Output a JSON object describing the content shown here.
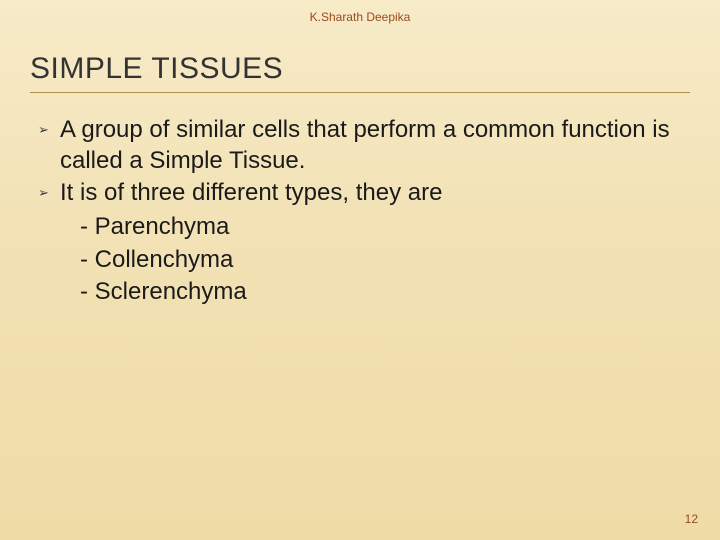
{
  "author": "K.Sharath Deepika",
  "title": "SIMPLE TISSUES",
  "bullets": [
    "A group of similar cells that perform a common function is called a Simple Tissue.",
    "It is of three different types, they are"
  ],
  "subitems": [
    "- Parenchyma",
    "- Collenchyma",
    "- Sclerenchyma"
  ],
  "page_number": "12",
  "colors": {
    "bg_top": "#f7ebc8",
    "bg_bottom": "#efdba6",
    "accent": "#9a4a1e",
    "underline": "#b38f4a",
    "text": "#1a1a1a"
  },
  "fonts": {
    "title_size_pt": 30,
    "body_size_pt": 24,
    "small_size_pt": 12
  }
}
